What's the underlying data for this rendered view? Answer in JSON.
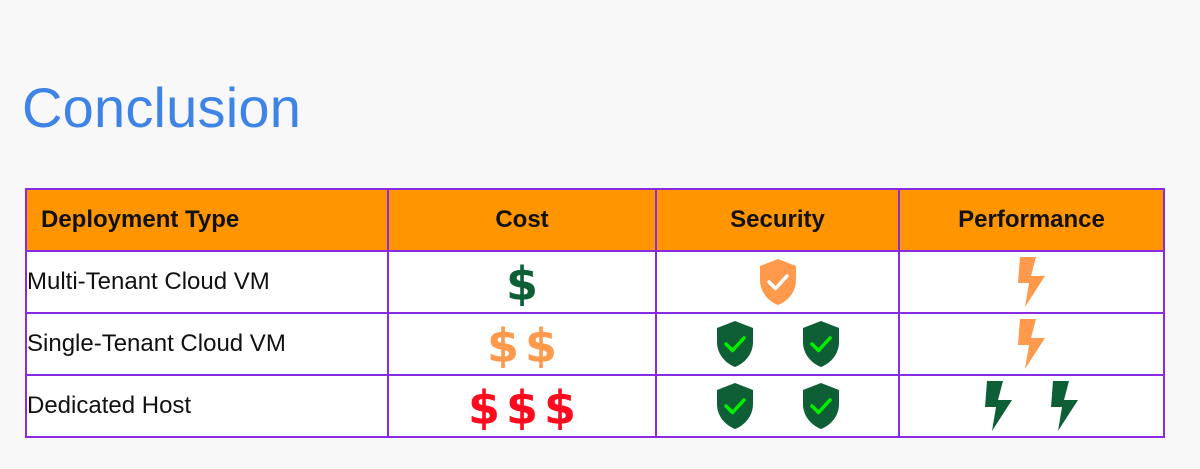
{
  "title": "Conclusion",
  "colors": {
    "title": "#3d84e6",
    "header_bg": "#ff9500",
    "border": "#8a2be2",
    "highlight_green": "#00f000",
    "dark_green_icon": "#0e5f36",
    "orange_icon": "#ff9a4d",
    "red_icon": "#ff0a1f"
  },
  "table": {
    "headers": {
      "deployment_type": "Deployment Type",
      "cost": "Cost",
      "security": "Security",
      "performance": "Performance"
    },
    "rows": [
      {
        "label": "Multi-Tenant Cloud VM",
        "cost": {
          "count": 1,
          "icon": "dollar-icon",
          "color": "dark-green",
          "highlighted": true
        },
        "security": {
          "count": 1,
          "icon": "shield-check-icon",
          "color": "orange",
          "highlighted": false
        },
        "performance": {
          "count": 1,
          "icon": "lightning-bolt-icon",
          "color": "orange",
          "highlighted": false
        }
      },
      {
        "label": "Single-Tenant Cloud VM",
        "cost": {
          "count": 2,
          "icon": "dollar-icon",
          "color": "orange",
          "highlighted": false
        },
        "security": {
          "count": 2,
          "icon": "shield-check-icon",
          "color": "dark-green",
          "highlighted": true
        },
        "performance": {
          "count": 1,
          "icon": "lightning-bolt-icon",
          "color": "orange",
          "highlighted": false
        }
      },
      {
        "label": "Dedicated Host",
        "cost": {
          "count": 3,
          "icon": "dollar-icon",
          "color": "red",
          "highlighted": false
        },
        "security": {
          "count": 2,
          "icon": "shield-check-icon",
          "color": "dark-green",
          "highlighted": true
        },
        "performance": {
          "count": 2,
          "icon": "lightning-bolt-icon",
          "color": "dark-green",
          "highlighted": true
        }
      }
    ]
  }
}
